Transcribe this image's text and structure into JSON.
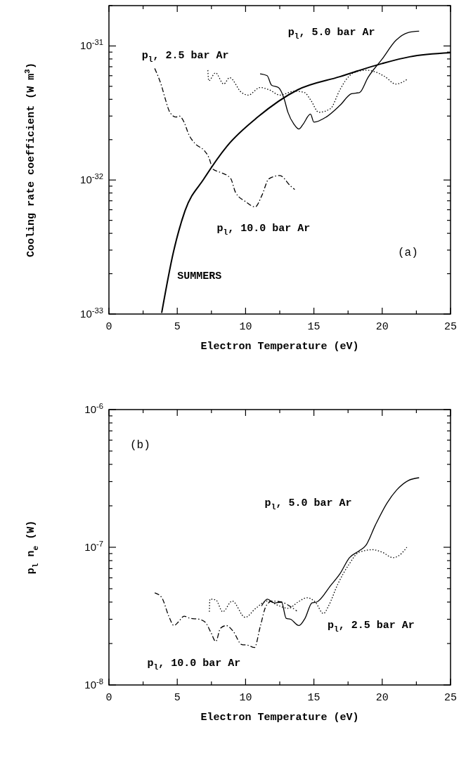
{
  "chart_data": [
    {
      "type": "line",
      "title": "(a)",
      "xlabel": "Electron Temperature (eV)",
      "ylabel": "Cooling rate coefficient (W m$^{3}$)",
      "log": "y",
      "xlim": [
        0,
        25
      ],
      "ylim": [
        1e-33,
        2e-31
      ],
      "xticks": [
        0,
        {
          "value": 2.5,
          "label": null
        },
        5,
        {
          "value": 7.5,
          "label": null
        },
        10,
        {
          "value": 12.5,
          "label": null
        },
        15,
        {
          "value": 17.5,
          "label": null
        },
        20,
        {
          "value": 22.5,
          "label": null
        },
        25
      ],
      "yticks": [
        {
          "value": 1e-33,
          "label": "10$^{-33}$"
        },
        {
          "value": 2e-33,
          "label": null
        },
        {
          "value": 3e-33,
          "label": null
        },
        {
          "value": 4e-33,
          "label": null
        },
        {
          "value": 5e-33,
          "label": null
        },
        {
          "value": 6e-33,
          "label": null
        },
        {
          "value": 7e-33,
          "label": null
        },
        {
          "value": 8e-33,
          "label": null
        },
        {
          "value": 9e-33,
          "label": null
        },
        {
          "value": 1e-32,
          "label": "10$^{-32}$"
        },
        {
          "value": 2e-32,
          "label": null
        },
        {
          "value": 3e-32,
          "label": null
        },
        {
          "value": 4e-32,
          "label": null
        },
        {
          "value": 5e-32,
          "label": null
        },
        {
          "value": 6e-32,
          "label": null
        },
        {
          "value": 7e-32,
          "label": null
        },
        {
          "value": 8e-32,
          "label": null
        },
        {
          "value": 9e-32,
          "label": null
        },
        {
          "value": 1e-31,
          "label": "10$^{-31}$"
        },
        {
          "value": 2e-31,
          "label": null
        }
      ],
      "series": [
        {
          "name": "SUMMERS",
          "color": "#000000",
          "line_style": "solid",
          "x": [
            3.86,
            4.72,
            5.57,
            6.95,
            8.66,
            10.89,
            13.8,
            16.9,
            20.0,
            22.0,
            25
          ],
          "values": [
            1.02e-33,
            2.9e-33,
            5.9e-33,
            1.02e-32,
            1.8e-32,
            2.95e-32,
            4.7e-32,
            5.9e-32,
            7.4e-32,
            8.3e-32,
            8.9e-32
          ]
        },
        {
          "name": "p$_{l}$, 5.0 bar Ar",
          "color": "#000000",
          "line_style": "solid",
          "x": [
            11.06,
            11.58,
            11.9,
            12.4,
            12.8,
            13.1,
            13.55,
            13.9,
            14.2,
            14.75,
            15.0,
            15.9,
            16.9,
            17.75,
            18.35,
            18.95,
            20.0,
            21.0,
            21.9,
            22.7
          ],
          "values": [
            6.2e-32,
            6e-32,
            5.1e-32,
            4.9e-32,
            4.1e-32,
            3.2e-32,
            2.6e-32,
            2.4e-32,
            2.6e-32,
            3.1e-32,
            2.7e-32,
            2.95e-32,
            3.6e-32,
            4.4e-32,
            4.5e-32,
            5.8e-32,
            8e-32,
            1.1e-31,
            1.26e-31,
            1.29e-31
          ]
        },
        {
          "name": "p$_{l}$, 2.5 bar Ar",
          "color": "#000000",
          "line_style": "dotted",
          "x": [
            7.24,
            7.3,
            7.8,
            8.4,
            8.83,
            9.7,
            10.2,
            11.06,
            11.75,
            12.5,
            13.6,
            14.3,
            14.8,
            15.35,
            16.2,
            16.9,
            17.3,
            17.9,
            18.8,
            19.5,
            20.2,
            21.0,
            21.9
          ],
          "values": [
            6.6e-32,
            5.5e-32,
            6.3e-32,
            5.2e-32,
            5.8e-32,
            4.5e-32,
            4.3e-32,
            4.9e-32,
            4.7e-32,
            4.3e-32,
            4.6e-32,
            4.5e-32,
            3.9e-32,
            3.2e-32,
            3.4e-32,
            4.7e-32,
            5.5e-32,
            6.3e-32,
            6.6e-32,
            6.4e-32,
            5.9e-32,
            5.2e-32,
            5.7e-32
          ]
        },
        {
          "name": "p$_{l}$, 10.0 bar Ar",
          "color": "#000000",
          "line_style": "dashed",
          "x": [
            3.35,
            3.86,
            4.1,
            4.46,
            4.9,
            5.15,
            5.5,
            5.83,
            6.35,
            6.95,
            7.3,
            7.63,
            8.06,
            8.9,
            9.26,
            10.0,
            10.7,
            11.2,
            11.7,
            12.5,
            13.3,
            13.6
          ],
          "values": [
            6.8e-32,
            5e-32,
            4.1e-32,
            3.2e-32,
            2.95e-32,
            3e-32,
            2.7e-32,
            2.2e-32,
            1.85e-32,
            1.67e-32,
            1.48e-32,
            1.2e-32,
            1.15e-32,
            1.03e-32,
            8.1e-33,
            6.9e-33,
            6.3e-33,
            7.7e-33,
            1.02e-32,
            1.08e-32,
            9e-33,
            8.5e-33
          ]
        }
      ],
      "legend": false
    },
    {
      "type": "line",
      "title": "(b)",
      "xlabel": "Electron Temperature (eV)",
      "ylabel": "p$_{l}$ n$_{e}$ (W)",
      "log": "y",
      "xlim": [
        0,
        25
      ],
      "ylim": [
        1e-08,
        1e-06
      ],
      "xticks": [
        0,
        {
          "value": 2.5,
          "label": null
        },
        5,
        {
          "value": 7.5,
          "label": null
        },
        10,
        {
          "value": 12.5,
          "label": null
        },
        15,
        {
          "value": 17.5,
          "label": null
        },
        20,
        {
          "value": 22.5,
          "label": null
        },
        25
      ],
      "yticks": [
        {
          "value": 1e-08,
          "label": "10$^{-8}$"
        },
        {
          "value": 2e-08,
          "label": null
        },
        {
          "value": 3e-08,
          "label": null
        },
        {
          "value": 4e-08,
          "label": null
        },
        {
          "value": 5e-08,
          "label": null
        },
        {
          "value": 6e-08,
          "label": null
        },
        {
          "value": 7e-08,
          "label": null
        },
        {
          "value": 8e-08,
          "label": null
        },
        {
          "value": 9e-08,
          "label": null
        },
        {
          "value": 1e-07,
          "label": "10$^{-7}$"
        },
        {
          "value": 2e-07,
          "label": null
        },
        {
          "value": 3e-07,
          "label": null
        },
        {
          "value": 4e-07,
          "label": null
        },
        {
          "value": 5e-07,
          "label": null
        },
        {
          "value": 6e-07,
          "label": null
        },
        {
          "value": 7e-07,
          "label": null
        },
        {
          "value": 8e-07,
          "label": null
        },
        {
          "value": 9e-07,
          "label": null
        },
        {
          "value": 1e-06,
          "label": "10$^{-6}$"
        }
      ],
      "series": [
        {
          "name": "p$_{l}$, 5.0 bar Ar",
          "color": "#000000",
          "line_style": "solid",
          "x": [
            11.17,
            11.6,
            12.1,
            12.63,
            12.97,
            13.3,
            13.9,
            14.35,
            14.86,
            15.2,
            16.24,
            16.9,
            17.6,
            18.3,
            18.8,
            19.5,
            20.36,
            21.05,
            21.9,
            22.7
          ],
          "values": [
            3.75e-08,
            4.2e-08,
            3.95e-08,
            4e-08,
            3.05e-08,
            3e-08,
            2.7e-08,
            3.05e-08,
            3.95e-08,
            4e-08,
            5.3e-08,
            6.4e-08,
            8.4e-08,
            9.4e-08,
            1.03e-07,
            1.45e-07,
            2.1e-07,
            2.6e-07,
            3.05e-07,
            3.2e-07
          ]
        },
        {
          "name": "p$_{l}$, 2.5 bar Ar",
          "color": "#000000",
          "line_style": "dotted",
          "x": [
            7.35,
            7.39,
            7.82,
            8.33,
            9.02,
            9.97,
            10.74,
            11.6,
            12.46,
            13.14,
            13.83,
            14.5,
            15.1,
            15.7,
            16.07,
            16.75,
            17.6,
            18.3,
            19.33,
            20.0,
            20.8,
            21.4,
            21.8
          ],
          "values": [
            3.4e-08,
            4.2e-08,
            4.15e-08,
            3.4e-08,
            4.07e-08,
            3.1e-08,
            3.6e-08,
            4.07e-08,
            3.75e-08,
            3.6e-08,
            4e-08,
            4.3e-08,
            4e-08,
            3.3e-08,
            3.75e-08,
            5.4e-08,
            7.6e-08,
            9.2e-08,
            9.6e-08,
            9.2e-08,
            8.4e-08,
            9e-08,
            1e-07
          ]
        },
        {
          "name": "p$_{l}$, 10.0 bar Ar",
          "color": "#000000",
          "line_style": "dashed",
          "x": [
            3.35,
            3.87,
            4.38,
            4.76,
            5.07,
            5.5,
            5.93,
            6.6,
            7.04,
            7.47,
            7.82,
            8.16,
            8.59,
            9.1,
            9.7,
            10.2,
            10.65,
            11.08,
            11.5,
            11.94,
            12.63,
            13.3,
            13.75
          ],
          "values": [
            4.67e-08,
            4.3e-08,
            3.16e-08,
            2.7e-08,
            2.86e-08,
            3.16e-08,
            3.05e-08,
            3e-08,
            2.86e-08,
            2.4e-08,
            2.07e-08,
            2.58e-08,
            2.7e-08,
            2.45e-08,
            1.97e-08,
            1.94e-08,
            1.87e-08,
            2.67e-08,
            3.75e-08,
            4.07e-08,
            4e-08,
            3.7e-08,
            3.44e-08
          ]
        }
      ],
      "legend": false
    }
  ]
}
